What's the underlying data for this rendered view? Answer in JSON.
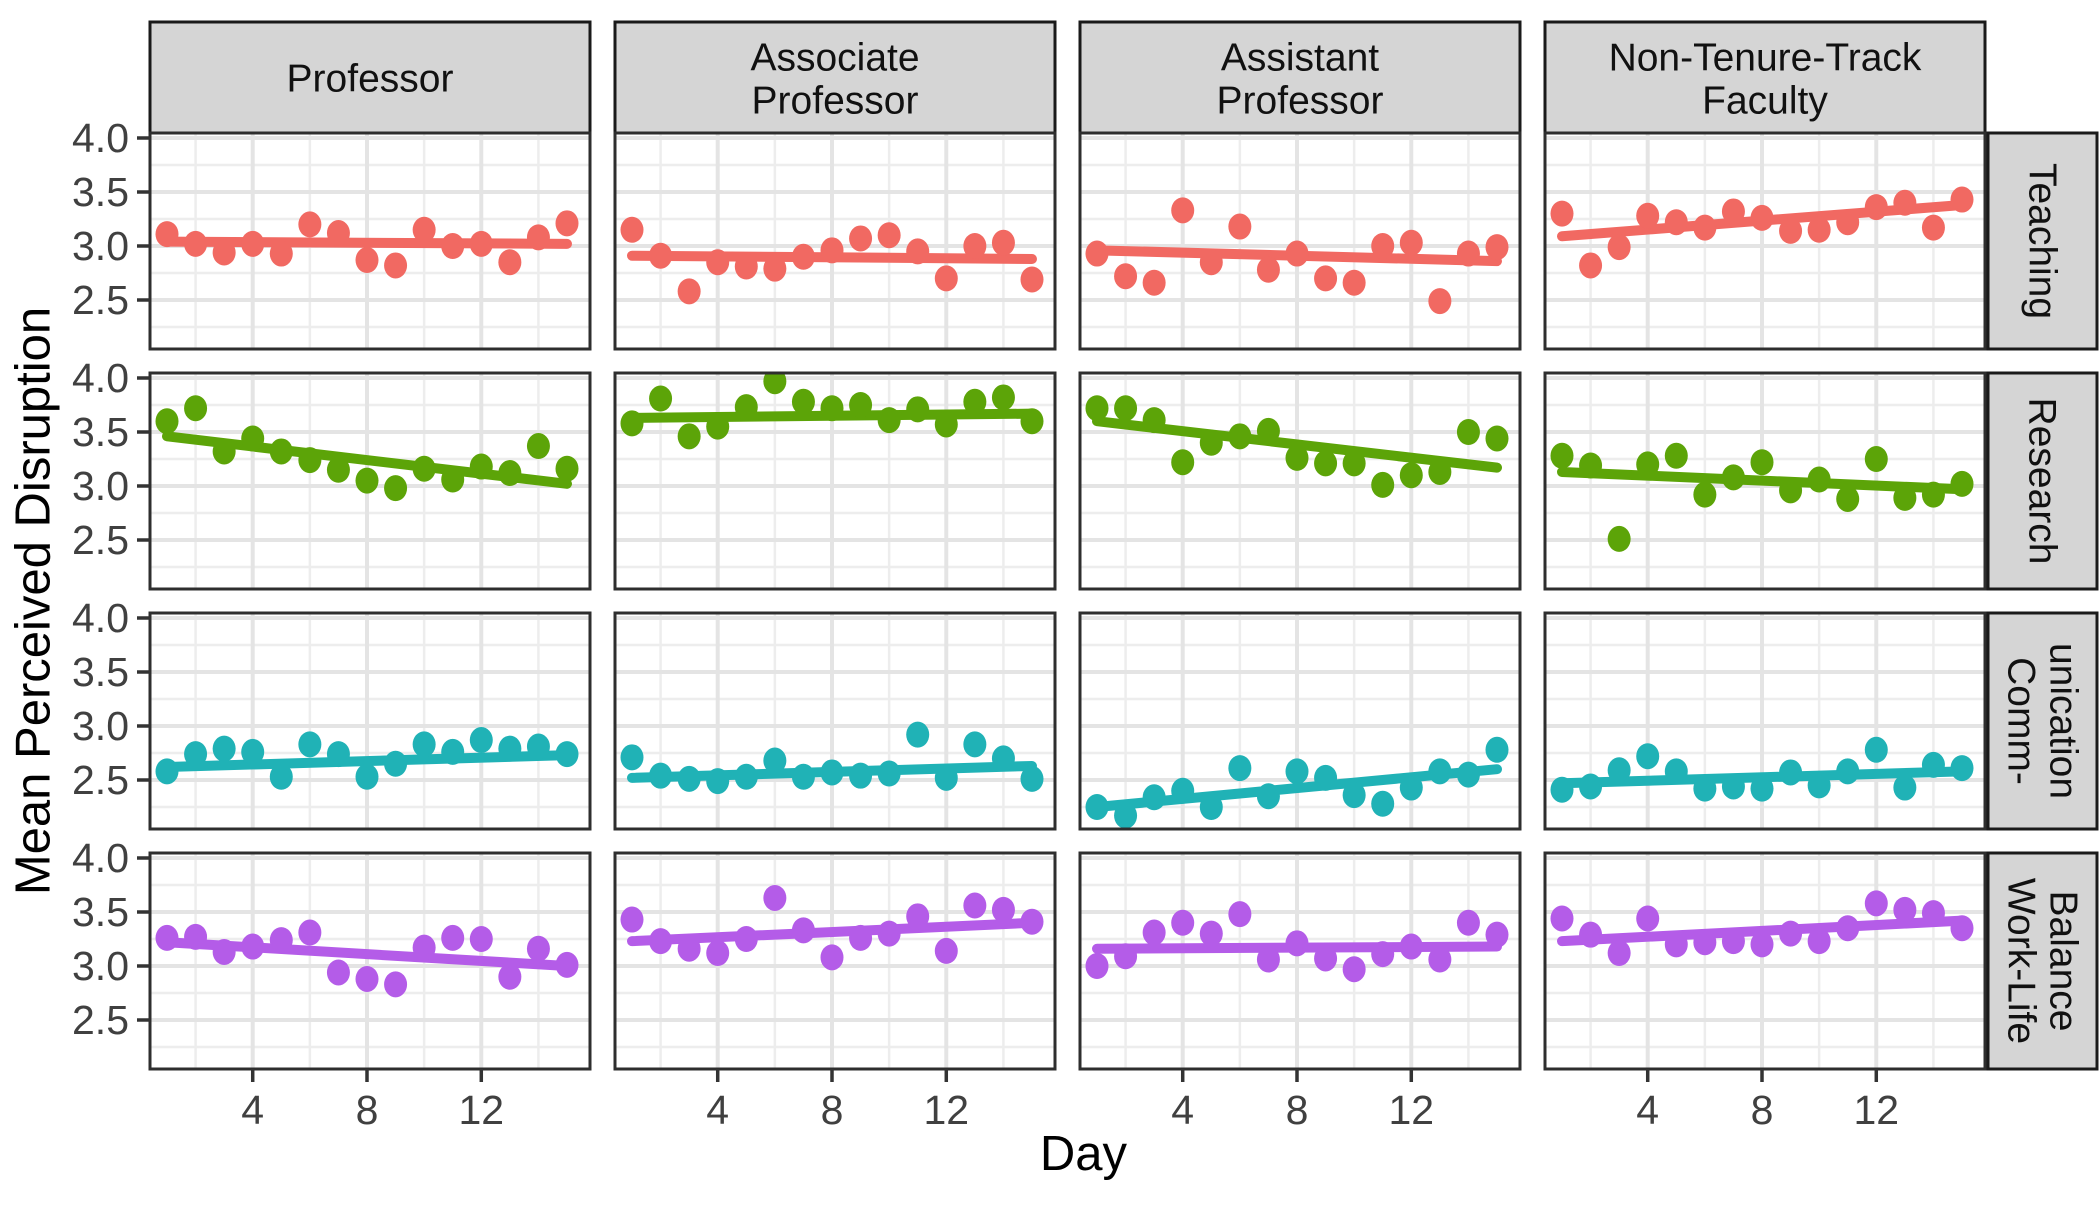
{
  "figure": {
    "xlabel": "Day",
    "ylabel": "Mean Perceived Disruption"
  },
  "chart_data": {
    "type": "scatter",
    "title": "",
    "xlabel": "Day",
    "ylabel": "Mean Perceived Disruption",
    "x_days": [
      1,
      2,
      3,
      4,
      5,
      6,
      7,
      8,
      9,
      10,
      11,
      12,
      13,
      14,
      15
    ],
    "x_ticks": [
      4,
      8,
      12
    ],
    "y_ticks": [
      "4.0",
      "3.5",
      "3.0",
      "2.5"
    ],
    "y_tick_values": [
      4.0,
      3.5,
      3.0,
      2.5
    ],
    "xlim": [
      0.45,
      15.8
    ],
    "ylim": [
      2.06,
      4.05
    ],
    "grid": "major+minor",
    "legend": "none",
    "facet_layout": "grid: columns = faculty rank, rows = disruption domain",
    "col_facets": [
      {
        "label": "Professor",
        "lines": [
          "Professor"
        ]
      },
      {
        "label": "Associate Professor",
        "lines": [
          "Associate",
          "Professor"
        ]
      },
      {
        "label": "Assistant Professor",
        "lines": [
          "Assistant",
          "Professor"
        ]
      },
      {
        "label": "Non-Tenure-Track Faculty",
        "lines": [
          "Non-Tenure-Track",
          "Faculty"
        ]
      }
    ],
    "row_facets": [
      {
        "label": "Teaching",
        "lines": [
          "Teaching"
        ],
        "color": "#F16962"
      },
      {
        "label": "Research",
        "lines": [
          "Research"
        ],
        "color": "#5CA408"
      },
      {
        "label": "Communication",
        "lines": [
          "Comm-",
          "unication"
        ],
        "color": "#20B2B6"
      },
      {
        "label": "Work-Life Balance",
        "lines": [
          "Work-Life",
          "Balance"
        ],
        "color": "#B45CE8"
      }
    ],
    "theme": {
      "strip_fill": "#D5D5D5",
      "strip_border": "#1A1A1A",
      "panel_border": "#2E2E2E",
      "panel_fill": "#FFFFFF",
      "grid_major": "#E4E4E4",
      "grid_minor": "#EDEDED",
      "tick_color": "#333333",
      "tick_label_color": "#404040",
      "title_color": "#000000"
    },
    "panels": [
      {
        "row": "Teaching",
        "col": "Professor",
        "values": [
          3.11,
          3.02,
          2.94,
          3.02,
          2.93,
          3.2,
          3.12,
          2.87,
          2.82,
          3.15,
          3.0,
          3.02,
          2.85,
          3.08,
          3.21
        ],
        "trend": [
          3.04,
          3.02
        ]
      },
      {
        "row": "Teaching",
        "col": "Associate Professor",
        "values": [
          3.15,
          2.91,
          2.58,
          2.85,
          2.81,
          2.79,
          2.9,
          2.96,
          3.07,
          3.1,
          2.95,
          2.7,
          3.0,
          3.03,
          2.69
        ],
        "trend": [
          2.91,
          2.88
        ]
      },
      {
        "row": "Teaching",
        "col": "Assistant Professor",
        "values": [
          2.93,
          2.72,
          2.66,
          3.33,
          2.85,
          3.18,
          2.78,
          2.93,
          2.7,
          2.66,
          3.0,
          3.03,
          2.49,
          2.93,
          2.99
        ],
        "trend": [
          2.96,
          2.86
        ]
      },
      {
        "row": "Teaching",
        "col": "Non-Tenure-Track Faculty",
        "values": [
          3.3,
          2.82,
          2.99,
          3.28,
          3.22,
          3.17,
          3.32,
          3.26,
          3.14,
          3.15,
          3.22,
          3.36,
          3.4,
          3.17,
          3.43
        ],
        "trend": [
          3.09,
          3.38
        ]
      },
      {
        "row": "Research",
        "col": "Professor",
        "values": [
          3.6,
          3.72,
          3.32,
          3.44,
          3.32,
          3.24,
          3.15,
          3.05,
          2.98,
          3.16,
          3.06,
          3.18,
          3.12,
          3.37,
          3.16
        ],
        "trend": [
          3.46,
          3.02
        ]
      },
      {
        "row": "Research",
        "col": "Associate Professor",
        "values": [
          3.58,
          3.81,
          3.46,
          3.55,
          3.73,
          3.97,
          3.78,
          3.72,
          3.75,
          3.61,
          3.71,
          3.57,
          3.78,
          3.82,
          3.6
        ],
        "trend": [
          3.63,
          3.67
        ]
      },
      {
        "row": "Research",
        "col": "Assistant Professor",
        "values": [
          3.72,
          3.72,
          3.61,
          3.22,
          3.4,
          3.46,
          3.51,
          3.26,
          3.21,
          3.21,
          3.01,
          3.1,
          3.13,
          3.5,
          3.44
        ],
        "trend": [
          3.6,
          3.17
        ]
      },
      {
        "row": "Research",
        "col": "Non-Tenure-Track Faculty",
        "values": [
          3.28,
          3.19,
          2.51,
          3.2,
          3.28,
          2.92,
          3.08,
          3.22,
          2.96,
          3.06,
          2.88,
          3.25,
          2.89,
          2.92,
          3.02
        ],
        "trend": [
          3.13,
          2.97
        ]
      },
      {
        "row": "Communication",
        "col": "Professor",
        "values": [
          2.58,
          2.74,
          2.79,
          2.76,
          2.53,
          2.83,
          2.74,
          2.53,
          2.65,
          2.83,
          2.76,
          2.87,
          2.79,
          2.81,
          2.74
        ],
        "trend": [
          2.62,
          2.73
        ]
      },
      {
        "row": "Communication",
        "col": "Associate Professor",
        "values": [
          2.71,
          2.54,
          2.51,
          2.49,
          2.53,
          2.68,
          2.53,
          2.57,
          2.54,
          2.56,
          2.92,
          2.52,
          2.83,
          2.7,
          2.51
        ],
        "trend": [
          2.52,
          2.63
        ]
      },
      {
        "row": "Communication",
        "col": "Assistant Professor",
        "values": [
          2.25,
          2.17,
          2.34,
          2.4,
          2.25,
          2.61,
          2.35,
          2.58,
          2.52,
          2.36,
          2.28,
          2.43,
          2.58,
          2.55,
          2.78
        ],
        "trend": [
          2.25,
          2.6
        ]
      },
      {
        "row": "Communication",
        "col": "Non-Tenure-Track Faculty",
        "values": [
          2.41,
          2.44,
          2.59,
          2.72,
          2.58,
          2.42,
          2.44,
          2.42,
          2.57,
          2.45,
          2.58,
          2.78,
          2.43,
          2.64,
          2.61
        ],
        "trend": [
          2.47,
          2.58
        ]
      },
      {
        "row": "Work-Life Balance",
        "col": "Professor",
        "values": [
          3.26,
          3.27,
          3.13,
          3.18,
          3.24,
          3.31,
          2.94,
          2.88,
          2.83,
          3.17,
          3.26,
          3.25,
          2.9,
          3.16,
          3.01
        ],
        "trend": [
          3.22,
          3.0
        ]
      },
      {
        "row": "Work-Life Balance",
        "col": "Associate Professor",
        "values": [
          3.43,
          3.23,
          3.16,
          3.12,
          3.25,
          3.63,
          3.33,
          3.08,
          3.26,
          3.3,
          3.46,
          3.14,
          3.56,
          3.52,
          3.41
        ],
        "trend": [
          3.23,
          3.4
        ]
      },
      {
        "row": "Work-Life Balance",
        "col": "Assistant Professor",
        "values": [
          3.0,
          3.09,
          3.31,
          3.4,
          3.3,
          3.48,
          3.06,
          3.21,
          3.07,
          2.97,
          3.11,
          3.18,
          3.06,
          3.4,
          3.29
        ],
        "trend": [
          3.16,
          3.18
        ]
      },
      {
        "row": "Work-Life Balance",
        "col": "Non-Tenure-Track Faculty",
        "values": [
          3.44,
          3.29,
          3.12,
          3.44,
          3.2,
          3.22,
          3.23,
          3.2,
          3.3,
          3.23,
          3.35,
          3.58,
          3.52,
          3.49,
          3.35
        ],
        "trend": [
          3.23,
          3.42
        ]
      }
    ]
  }
}
